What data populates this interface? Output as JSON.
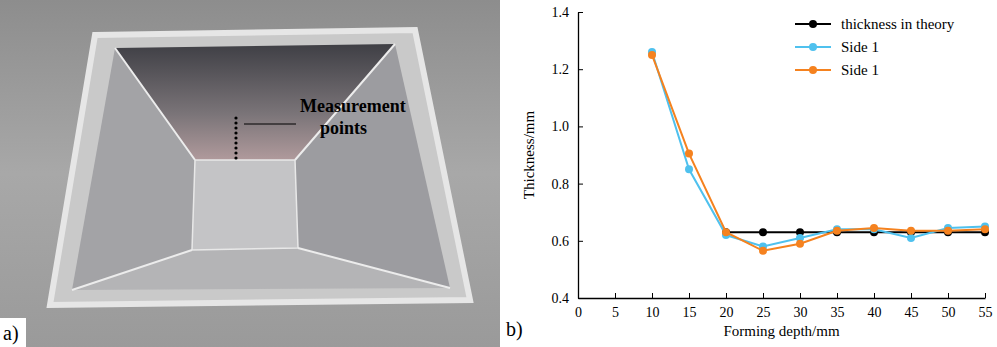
{
  "image": {
    "label": "a)",
    "annotations": [
      "Measurement points"
    ]
  },
  "chart_data": {
    "type": "line",
    "annotations": [
      "b)"
    ],
    "x_label": "Forming depth/mm",
    "y_label": "Thickness/mm",
    "x": [
      10,
      15,
      20,
      25,
      30,
      35,
      40,
      45,
      50,
      55
    ],
    "xlim": [
      0,
      55
    ],
    "xticks": [
      0,
      5,
      10,
      15,
      20,
      25,
      30,
      35,
      40,
      45,
      50,
      55
    ],
    "ylim": [
      0.4,
      1.4
    ],
    "yticks": [
      0.4,
      0.6,
      0.8,
      {
        "value": 1,
        "label": "1.0"
      },
      1.2,
      1.4
    ],
    "legend": "upper right",
    "marker": "circle",
    "series": [
      {
        "name": "thickness in theory",
        "color": "#000000",
        "values": [
          null,
          null,
          0.63,
          0.63,
          0.63,
          0.63,
          0.63,
          0.63,
          0.63,
          0.63
        ]
      },
      {
        "name": "Side 1",
        "color": "#4fc1ee",
        "values": [
          1.26,
          0.85,
          0.62,
          0.58,
          0.61,
          0.64,
          0.64,
          0.61,
          0.645,
          0.65
        ]
      },
      {
        "name": "Side 1",
        "color": "#f5821f",
        "values": [
          1.25,
          0.905,
          0.63,
          0.565,
          0.59,
          0.635,
          0.645,
          0.635,
          0.635,
          0.64
        ]
      }
    ]
  }
}
